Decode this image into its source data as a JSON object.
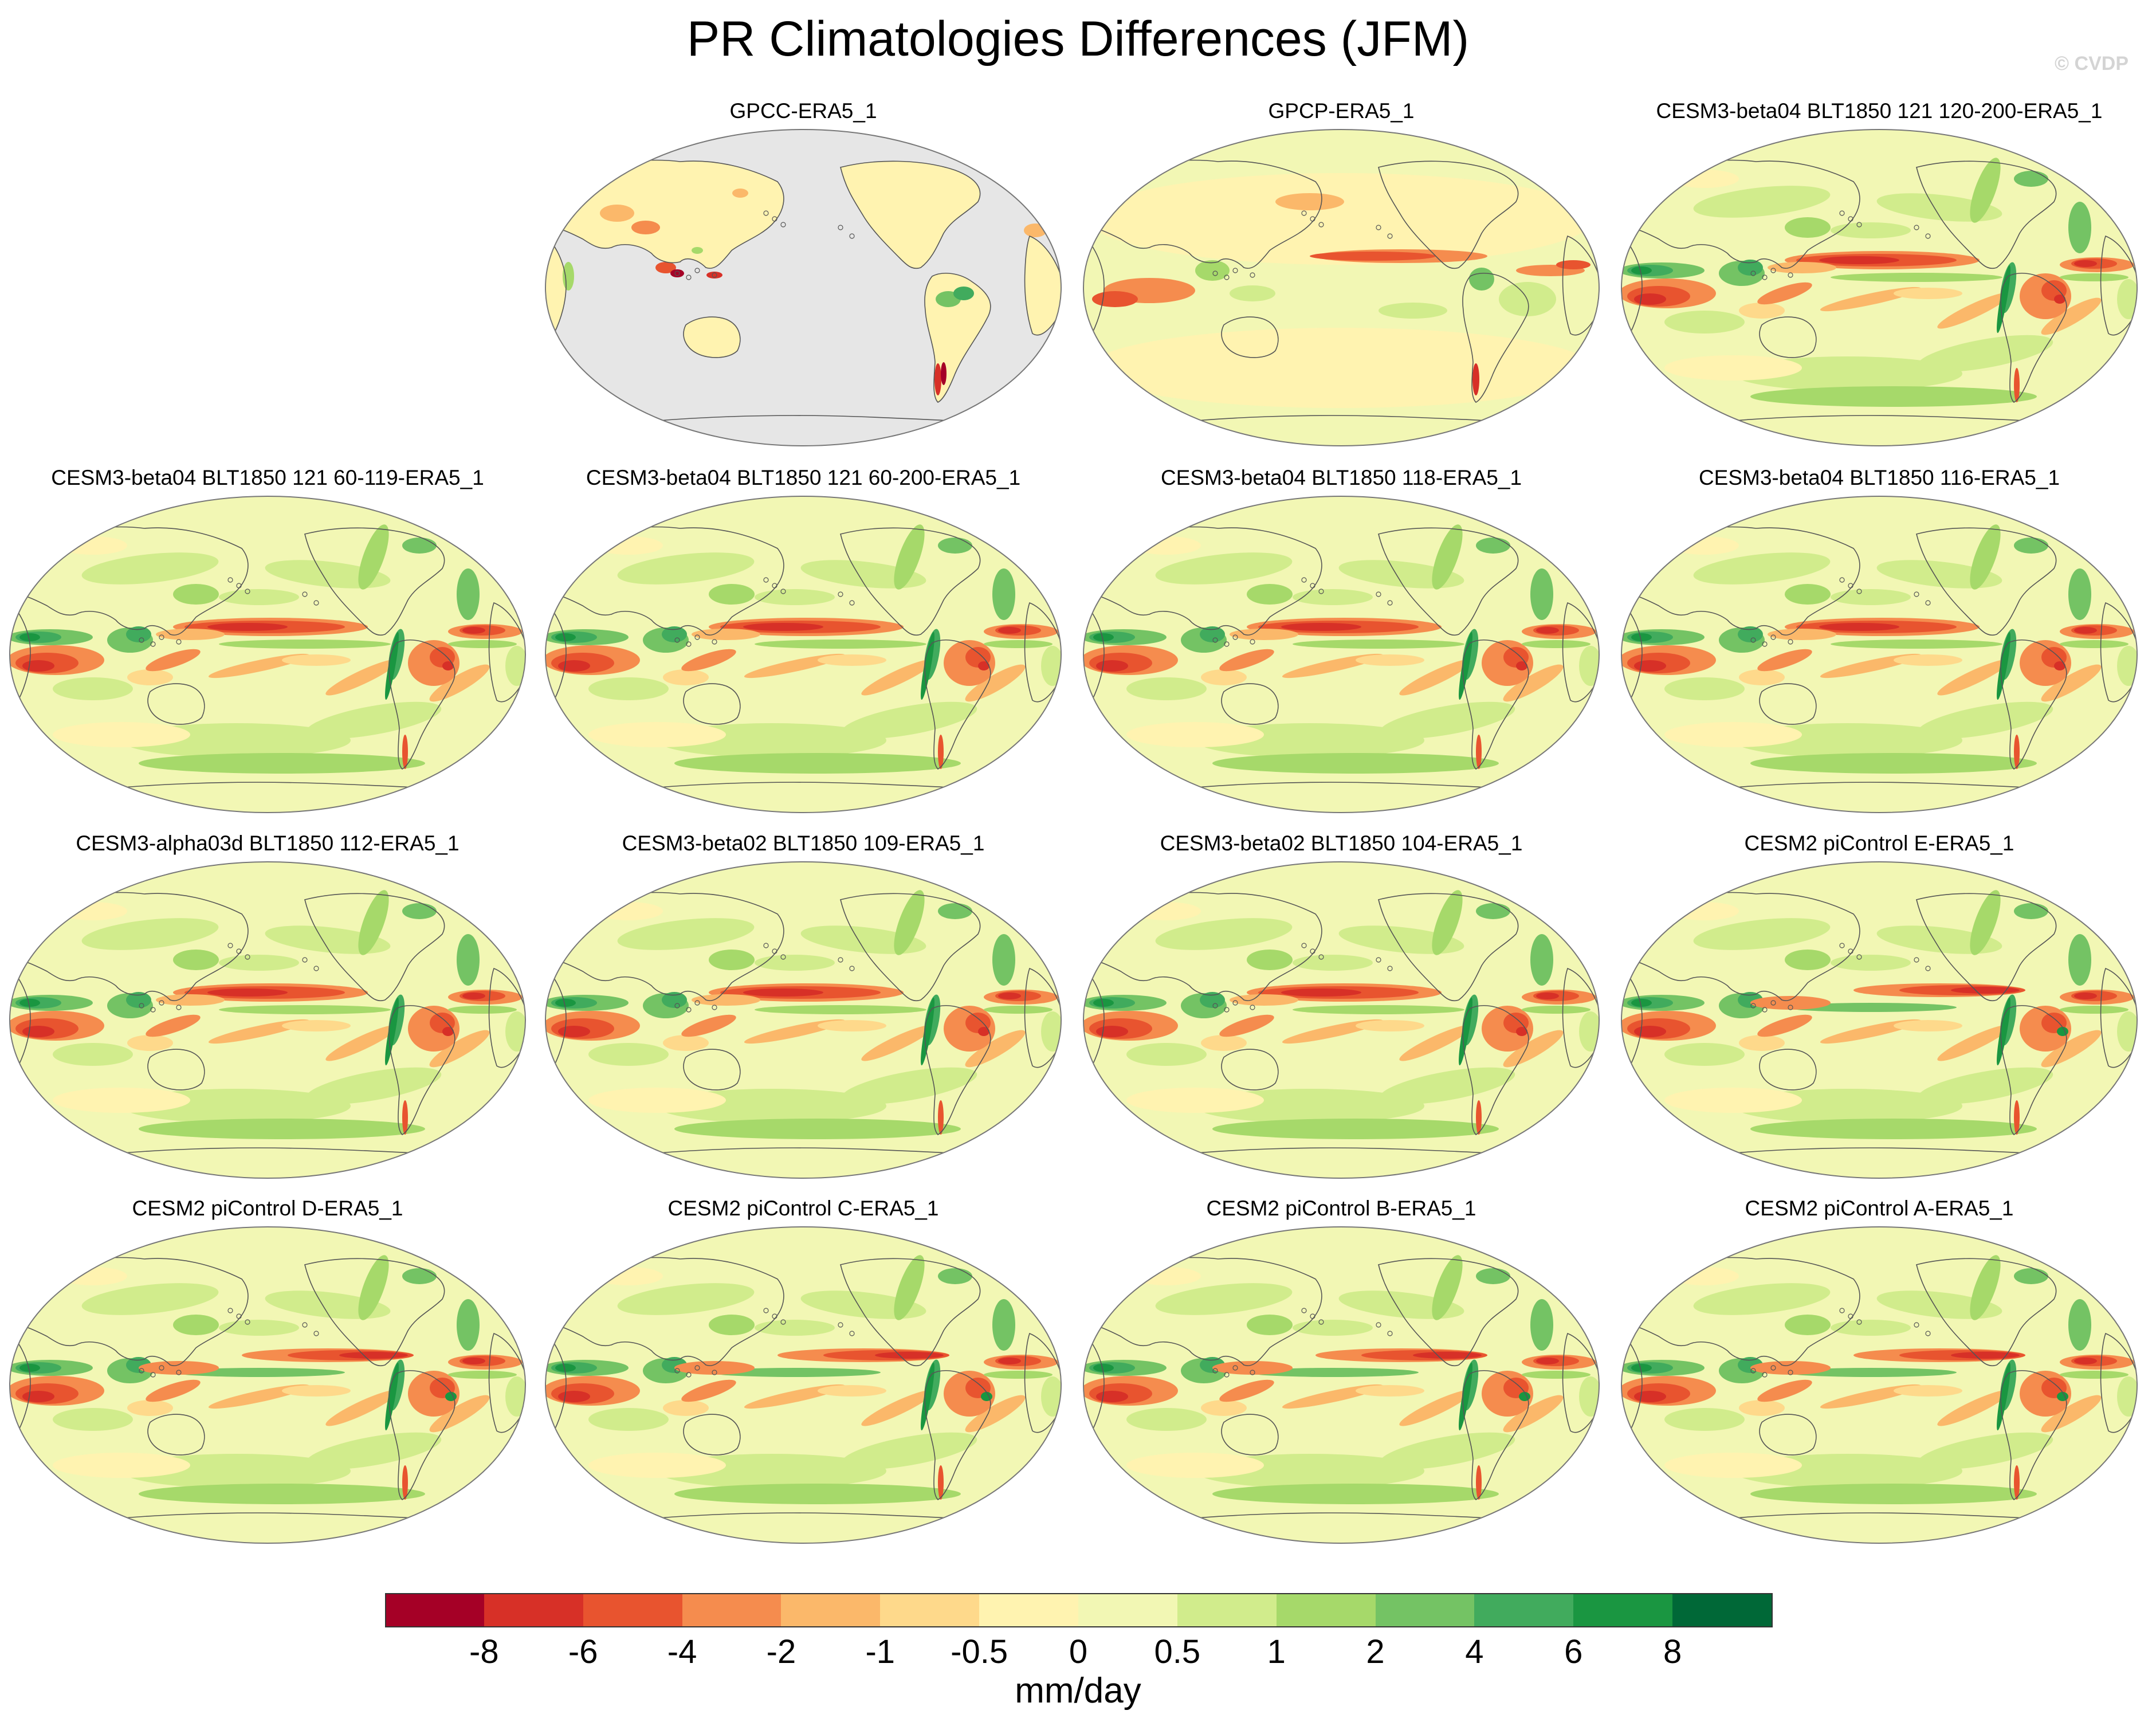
{
  "title": "PR Climatologies Differences (JFM)",
  "watermark": "© CVDP",
  "panels": [
    {
      "label": "GPCC-ERA5_1",
      "mode": "land"
    },
    {
      "label": "GPCP-ERA5_1",
      "mode": "obs"
    },
    {
      "label": "CESM3-beta04 BLT1850 121 120-200-ERA5_1",
      "mode": "model"
    },
    {
      "label": "CESM3-beta04 BLT1850 121 60-119-ERA5_1",
      "mode": "model"
    },
    {
      "label": "CESM3-beta04 BLT1850 121 60-200-ERA5_1",
      "mode": "model"
    },
    {
      "label": "CESM3-beta04 BLT1850 118-ERA5_1",
      "mode": "model"
    },
    {
      "label": "CESM3-beta04 BLT1850 116-ERA5_1",
      "mode": "model"
    },
    {
      "label": "CESM3-alpha03d BLT1850 112-ERA5_1",
      "mode": "model"
    },
    {
      "label": "CESM3-beta02 BLT1850 109-ERA5_1",
      "mode": "model"
    },
    {
      "label": "CESM3-beta02 BLT1850 104-ERA5_1",
      "mode": "model"
    },
    {
      "label": "CESM2 piControl E-ERA5_1",
      "mode": "cesm2"
    },
    {
      "label": "CESM2 piControl D-ERA5_1",
      "mode": "cesm2"
    },
    {
      "label": "CESM2 piControl C-ERA5_1",
      "mode": "cesm2"
    },
    {
      "label": "CESM2 piControl B-ERA5_1",
      "mode": "cesm2"
    },
    {
      "label": "CESM2 piControl A-ERA5_1",
      "mode": "cesm2"
    }
  ],
  "colorbar": {
    "units": "mm/day",
    "ticks": [
      "-8",
      "-6",
      "-4",
      "-2",
      "-1",
      "-0.5",
      "0",
      "0.5",
      "1",
      "2",
      "4",
      "6",
      "8"
    ],
    "colors": [
      "#a50026",
      "#d73027",
      "#e8542f",
      "#f58c4e",
      "#fbb86a",
      "#fed98b",
      "#fff3b0",
      "#f2f7b4",
      "#d1ec8c",
      "#a6d96a",
      "#74c364",
      "#41ab5d",
      "#1a9641",
      "#006837"
    ]
  },
  "colors": {
    "land_mask": "#e6e6e6",
    "coast": "#555555",
    "outline": "#777777"
  }
}
